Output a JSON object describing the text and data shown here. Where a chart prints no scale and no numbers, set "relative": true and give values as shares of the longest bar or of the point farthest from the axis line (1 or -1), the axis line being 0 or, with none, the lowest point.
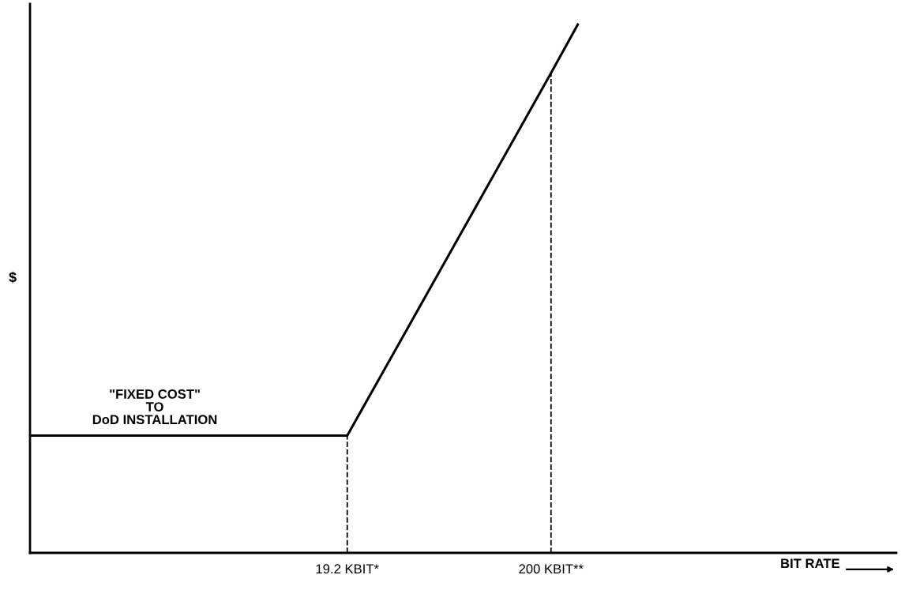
{
  "chart_data": {
    "type": "line",
    "relative": true,
    "log": "x",
    "xlabel": "BIT RATE",
    "ylabel": "$",
    "x": [
      0.5,
      19.2,
      200,
      272
    ],
    "series": [
      {
        "color": "#000000",
        "values": [
          0.222,
          0.222,
          0.908,
          1
        ]
      }
    ],
    "xlim": [
      0.5,
      10600
    ],
    "xticks": [
      {
        "value": 19.2,
        "label": "19.2 KBIT*"
      },
      {
        "value": 200,
        "label": "200 KBIT**"
      }
    ],
    "ref_lines": [
      {
        "axis": "x",
        "value": 19.2,
        "line_style": "dashed",
        "color": "#000000"
      },
      {
        "axis": "x",
        "value": 200,
        "line_style": "dashed",
        "color": "#000000"
      }
    ],
    "annotations": [
      {
        "text": "\"FIXED COST\"\nTO\nDoD INSTALLATION",
        "x": 2.1,
        "y": 0.222
      }
    ],
    "grid": false,
    "legend": false,
    "marker": "none",
    "line_style": "solid"
  }
}
